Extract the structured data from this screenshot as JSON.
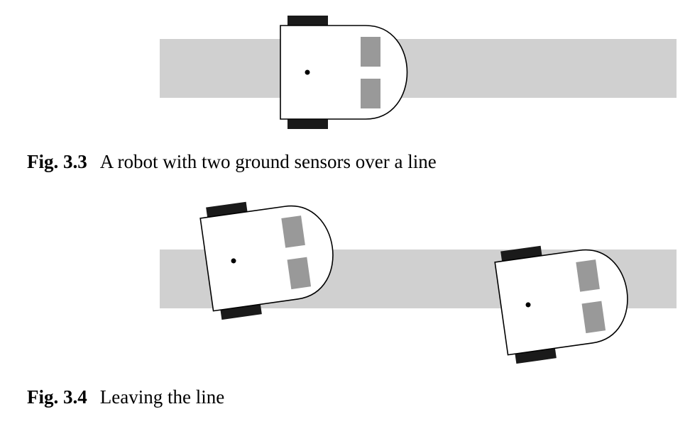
{
  "figures": [
    {
      "label": "Fig. 3.3",
      "caption": "A robot with two ground sensors over a line"
    },
    {
      "label": "Fig. 3.4",
      "caption": "Leaving the line"
    }
  ],
  "colors": {
    "line": "#d0d0d0",
    "sensor": "#999999",
    "wheel": "#1a1a1a",
    "body_stroke": "#000000",
    "body_fill": "#ffffff"
  }
}
